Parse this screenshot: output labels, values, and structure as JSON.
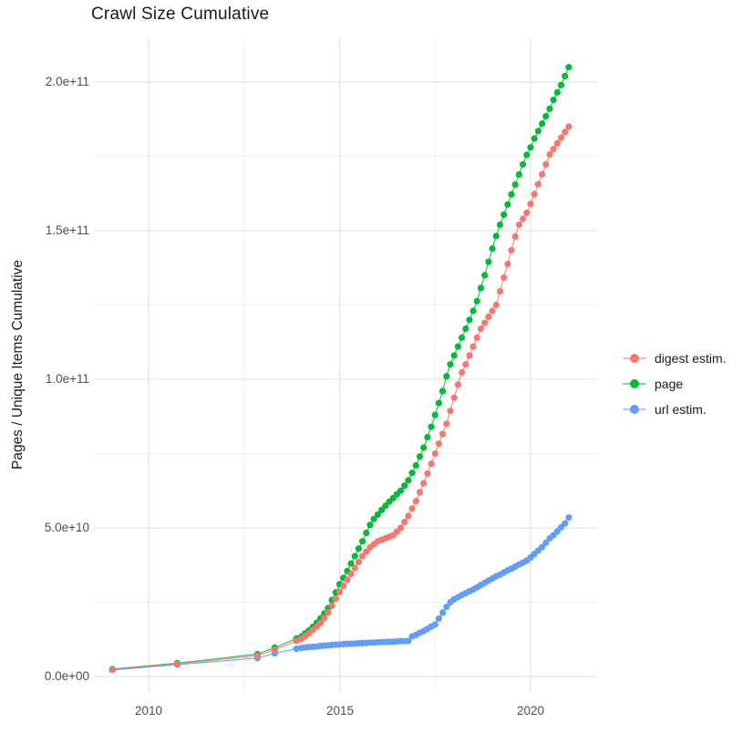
{
  "chart_data": {
    "type": "line",
    "title": "Crawl Size Cumulative",
    "xlabel": "",
    "ylabel": "Pages / Unique Items Cumulative",
    "x_ticks": [
      "2010",
      "2015",
      "2020"
    ],
    "y_ticks": [
      "0.0e+00",
      "5.0e+10",
      "1.0e+11",
      "1.5e+11",
      "2.0e+11"
    ],
    "x_tick_values": [
      2010,
      2015,
      2020
    ],
    "x_minor_values": [
      2012.5,
      2017.5
    ],
    "y_tick_values_e9": [
      0,
      50,
      100,
      150,
      200
    ],
    "y_minor_values_e9": [
      25,
      75,
      125,
      175
    ],
    "xlim": [
      2008.6,
      2021.75
    ],
    "ylim_e9": [
      0,
      214
    ],
    "grid": true,
    "legend_position": "right",
    "unit": "cumulative pages / unique items; values stored in billions (1e9)",
    "series": [
      {
        "name": "digest estim.",
        "color": "#F8766D",
        "points": [
          [
            2009.05,
            2.3
          ],
          [
            2010.75,
            4.2
          ],
          [
            2012.85,
            7.0
          ],
          [
            2013.3,
            9.0
          ],
          [
            2013.87,
            12.0
          ],
          [
            2014.0,
            12.7
          ],
          [
            2014.1,
            13.6
          ],
          [
            2014.2,
            14.5
          ],
          [
            2014.3,
            15.6
          ],
          [
            2014.4,
            16.8
          ],
          [
            2014.5,
            18.0
          ],
          [
            2014.6,
            19.7
          ],
          [
            2014.7,
            21.5
          ],
          [
            2014.8,
            23.8
          ],
          [
            2014.9,
            26.1
          ],
          [
            2015.0,
            28.5
          ],
          [
            2015.1,
            30.5
          ],
          [
            2015.2,
            32.5
          ],
          [
            2015.3,
            34.5
          ],
          [
            2015.4,
            36.5
          ],
          [
            2015.5,
            38.5
          ],
          [
            2015.6,
            40.5
          ],
          [
            2015.7,
            42.0
          ],
          [
            2015.8,
            43.5
          ],
          [
            2015.9,
            44.5
          ],
          [
            2016.0,
            45.5
          ],
          [
            2016.1,
            46.0
          ],
          [
            2016.2,
            46.5
          ],
          [
            2016.3,
            47.0
          ],
          [
            2016.4,
            47.5
          ],
          [
            2016.5,
            48.7
          ],
          [
            2016.6,
            50.0
          ],
          [
            2016.7,
            52.0
          ],
          [
            2016.8,
            54.0
          ],
          [
            2016.9,
            56.5
          ],
          [
            2017.0,
            59.0
          ],
          [
            2017.1,
            62.0
          ],
          [
            2017.2,
            65.0
          ],
          [
            2017.3,
            68.3
          ],
          [
            2017.4,
            71.6
          ],
          [
            2017.5,
            75.0
          ],
          [
            2017.6,
            78.3
          ],
          [
            2017.7,
            81.6
          ],
          [
            2017.8,
            85.0
          ],
          [
            2017.9,
            89.4
          ],
          [
            2018.0,
            93.8
          ],
          [
            2018.1,
            98.2
          ],
          [
            2018.2,
            102.3
          ],
          [
            2018.3,
            105.0
          ],
          [
            2018.4,
            108.0
          ],
          [
            2018.5,
            111.0
          ],
          [
            2018.6,
            114.0
          ],
          [
            2018.7,
            117.0
          ],
          [
            2018.8,
            119.0
          ],
          [
            2018.9,
            121.0
          ],
          [
            2019.0,
            123.0
          ],
          [
            2019.1,
            125.0
          ],
          [
            2019.2,
            129.6
          ],
          [
            2019.3,
            134.2
          ],
          [
            2019.4,
            138.8
          ],
          [
            2019.5,
            143.4
          ],
          [
            2019.6,
            148.0
          ],
          [
            2019.7,
            152.0
          ],
          [
            2019.8,
            154.0
          ],
          [
            2019.9,
            156.0
          ],
          [
            2020.0,
            159.0
          ],
          [
            2020.1,
            162.3
          ],
          [
            2020.2,
            165.6
          ],
          [
            2020.3,
            169.0
          ],
          [
            2020.4,
            172.3
          ],
          [
            2020.5,
            175.6
          ],
          [
            2020.6,
            177.5
          ],
          [
            2020.7,
            179.4
          ],
          [
            2020.8,
            181.3
          ],
          [
            2020.9,
            183.2
          ],
          [
            2021.0,
            185.0
          ]
        ]
      },
      {
        "name": "page",
        "color": "#00BA38",
        "points": [
          [
            2009.05,
            2.5
          ],
          [
            2010.75,
            4.5
          ],
          [
            2012.85,
            7.5
          ],
          [
            2013.3,
            9.7
          ],
          [
            2013.87,
            12.8
          ],
          [
            2014.0,
            13.5
          ],
          [
            2014.1,
            14.5
          ],
          [
            2014.2,
            15.5
          ],
          [
            2014.3,
            16.7
          ],
          [
            2014.4,
            18.1
          ],
          [
            2014.5,
            19.5
          ],
          [
            2014.6,
            21.2
          ],
          [
            2014.7,
            23.0
          ],
          [
            2014.8,
            25.7
          ],
          [
            2014.9,
            28.3
          ],
          [
            2015.0,
            31.0
          ],
          [
            2015.1,
            33.2
          ],
          [
            2015.2,
            35.5
          ],
          [
            2015.3,
            38.0
          ],
          [
            2015.4,
            40.5
          ],
          [
            2015.5,
            43.0
          ],
          [
            2015.6,
            45.5
          ],
          [
            2015.7,
            48.3
          ],
          [
            2015.8,
            51.0
          ],
          [
            2015.9,
            53.0
          ],
          [
            2016.0,
            54.5
          ],
          [
            2016.1,
            56.0
          ],
          [
            2016.2,
            57.4
          ],
          [
            2016.3,
            58.8
          ],
          [
            2016.4,
            60.0
          ],
          [
            2016.5,
            61.3
          ],
          [
            2016.6,
            62.5
          ],
          [
            2016.7,
            64.2
          ],
          [
            2016.8,
            66.0
          ],
          [
            2016.9,
            68.5
          ],
          [
            2017.0,
            71.0
          ],
          [
            2017.1,
            74.0
          ],
          [
            2017.2,
            77.0
          ],
          [
            2017.3,
            80.5
          ],
          [
            2017.4,
            84.0
          ],
          [
            2017.5,
            88.0
          ],
          [
            2017.6,
            92.0
          ],
          [
            2017.7,
            96.0
          ],
          [
            2017.8,
            101.0
          ],
          [
            2017.9,
            105.0
          ],
          [
            2018.0,
            108.0
          ],
          [
            2018.1,
            111.0
          ],
          [
            2018.2,
            114.0
          ],
          [
            2018.3,
            117.0
          ],
          [
            2018.4,
            120.0
          ],
          [
            2018.5,
            123.0
          ],
          [
            2018.6,
            126.3
          ],
          [
            2018.7,
            130.7
          ],
          [
            2018.8,
            135.0
          ],
          [
            2018.9,
            139.5
          ],
          [
            2019.0,
            144.0
          ],
          [
            2019.1,
            148.2
          ],
          [
            2019.2,
            152.0
          ],
          [
            2019.3,
            155.4
          ],
          [
            2019.4,
            158.8
          ],
          [
            2019.5,
            162.2
          ],
          [
            2019.6,
            165.5
          ],
          [
            2019.7,
            168.9
          ],
          [
            2019.8,
            172.3
          ],
          [
            2019.9,
            175.5
          ],
          [
            2020.0,
            178.0
          ],
          [
            2020.1,
            181.0
          ],
          [
            2020.2,
            183.5
          ],
          [
            2020.3,
            186.0
          ],
          [
            2020.4,
            188.5
          ],
          [
            2020.5,
            191.0
          ],
          [
            2020.6,
            194.0
          ],
          [
            2020.7,
            196.5
          ],
          [
            2020.8,
            199.0
          ],
          [
            2020.9,
            202.0
          ],
          [
            2021.0,
            205.0
          ]
        ]
      },
      {
        "name": "url estim.",
        "color": "#619CFF",
        "points": [
          [
            2009.05,
            2.2
          ],
          [
            2010.75,
            4.0
          ],
          [
            2012.85,
            6.2
          ],
          [
            2013.3,
            7.8
          ],
          [
            2013.87,
            9.3
          ],
          [
            2014.0,
            9.6
          ],
          [
            2014.1,
            9.8
          ],
          [
            2014.2,
            9.9
          ],
          [
            2014.3,
            10.0
          ],
          [
            2014.4,
            10.1
          ],
          [
            2014.5,
            10.3
          ],
          [
            2014.6,
            10.4
          ],
          [
            2014.7,
            10.5
          ],
          [
            2014.8,
            10.6
          ],
          [
            2014.9,
            10.7
          ],
          [
            2015.0,
            10.8
          ],
          [
            2015.1,
            10.9
          ],
          [
            2015.2,
            11.0
          ],
          [
            2015.3,
            11.0
          ],
          [
            2015.4,
            11.1
          ],
          [
            2015.5,
            11.2
          ],
          [
            2015.6,
            11.2
          ],
          [
            2015.7,
            11.3
          ],
          [
            2015.8,
            11.4
          ],
          [
            2015.9,
            11.4
          ],
          [
            2016.0,
            11.5
          ],
          [
            2016.1,
            11.6
          ],
          [
            2016.2,
            11.6
          ],
          [
            2016.3,
            11.7
          ],
          [
            2016.4,
            11.7
          ],
          [
            2016.5,
            11.8
          ],
          [
            2016.6,
            11.9
          ],
          [
            2016.7,
            11.9
          ],
          [
            2016.8,
            12.0
          ],
          [
            2016.9,
            13.5
          ],
          [
            2017.0,
            14.0
          ],
          [
            2017.1,
            14.7
          ],
          [
            2017.2,
            15.3
          ],
          [
            2017.3,
            16.0
          ],
          [
            2017.4,
            16.8
          ],
          [
            2017.5,
            17.5
          ],
          [
            2017.6,
            19.5
          ],
          [
            2017.7,
            21.5
          ],
          [
            2017.8,
            23.4
          ],
          [
            2017.9,
            25.0
          ],
          [
            2018.0,
            26.0
          ],
          [
            2018.1,
            26.7
          ],
          [
            2018.2,
            27.4
          ],
          [
            2018.3,
            28.0
          ],
          [
            2018.4,
            28.7
          ],
          [
            2018.5,
            29.3
          ],
          [
            2018.6,
            30.0
          ],
          [
            2018.7,
            30.8
          ],
          [
            2018.8,
            31.5
          ],
          [
            2018.9,
            32.3
          ],
          [
            2019.0,
            33.0
          ],
          [
            2019.1,
            33.7
          ],
          [
            2019.2,
            34.3
          ],
          [
            2019.3,
            35.0
          ],
          [
            2019.4,
            35.7
          ],
          [
            2019.5,
            36.3
          ],
          [
            2019.6,
            37.0
          ],
          [
            2019.7,
            37.7
          ],
          [
            2019.8,
            38.3
          ],
          [
            2019.9,
            39.0
          ],
          [
            2020.0,
            40.0
          ],
          [
            2020.1,
            41.2
          ],
          [
            2020.2,
            42.4
          ],
          [
            2020.3,
            43.5
          ],
          [
            2020.4,
            45.0
          ],
          [
            2020.5,
            46.5
          ],
          [
            2020.6,
            47.5
          ],
          [
            2020.7,
            48.8
          ],
          [
            2020.8,
            50.2
          ],
          [
            2020.9,
            51.5
          ],
          [
            2021.0,
            53.5
          ]
        ]
      }
    ]
  }
}
